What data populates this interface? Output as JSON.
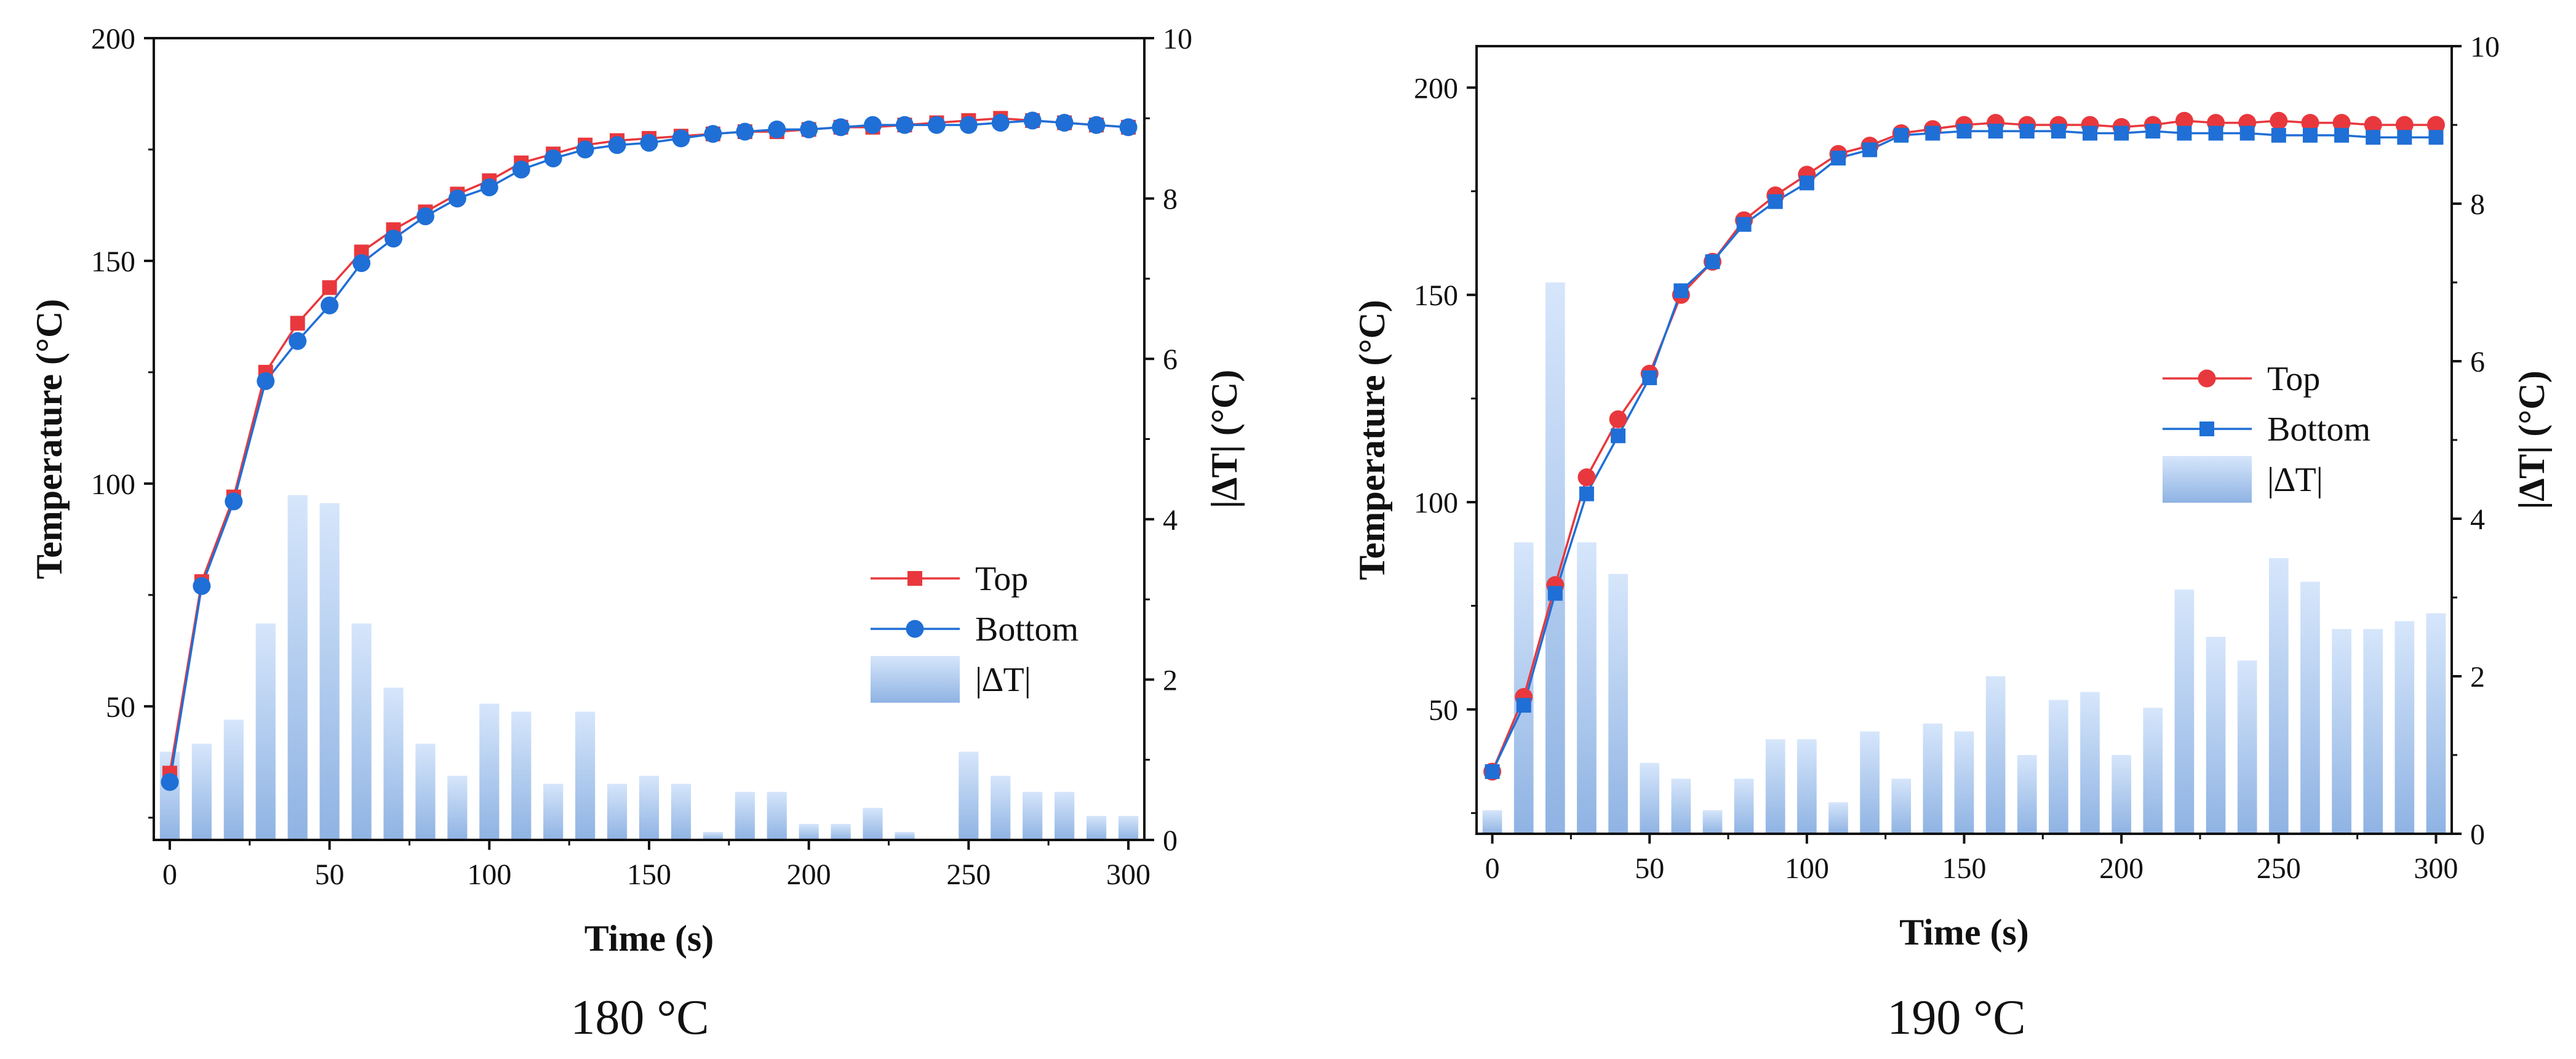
{
  "colors": {
    "top": "#e8383d",
    "bottom": "#1f6fd6",
    "bar_light": "#d6e6fb",
    "bar_dark": "#8fb3e3",
    "axis": "#111111"
  },
  "chart_data": [
    {
      "type": "line+bar",
      "caption": "180 °C",
      "xlabel": "Time (s)",
      "ylabel": "Temperature (°C)",
      "y2label": "|∆T| (°C)",
      "xlim": [
        -5,
        305
      ],
      "ylim": [
        20,
        200
      ],
      "y2lim": [
        0,
        10
      ],
      "xticks": [
        0,
        50,
        100,
        150,
        200,
        250,
        300
      ],
      "yticks": [
        50,
        100,
        150,
        200
      ],
      "y2ticks": [
        0,
        2,
        4,
        6,
        8,
        10
      ],
      "legend": {
        "placement": "center-right",
        "labels": [
          "Top",
          "Bottom",
          "|∆T|"
        ]
      },
      "x": [
        0,
        10,
        20,
        30,
        40,
        50,
        60,
        70,
        80,
        90,
        100,
        110,
        120,
        130,
        140,
        150,
        160,
        170,
        180,
        190,
        200,
        210,
        220,
        230,
        240,
        250,
        260,
        270,
        280,
        290,
        300
      ],
      "series": [
        {
          "name": "Top",
          "marker": "square",
          "values": [
            35,
            78,
            97,
            125,
            136,
            144,
            152,
            157,
            161,
            165,
            168,
            172,
            174,
            176,
            177,
            177.5,
            178,
            178.5,
            179,
            179,
            179.5,
            180,
            180,
            180.5,
            181,
            181.5,
            182,
            181.5,
            181,
            180.5,
            180
          ]
        },
        {
          "name": "Bottom",
          "marker": "circle",
          "values": [
            33,
            77,
            96,
            123,
            132,
            140,
            149.5,
            155,
            160,
            164,
            166.5,
            170.5,
            173,
            175,
            176,
            176.5,
            177.5,
            178.5,
            179,
            179.5,
            179.5,
            180,
            180.5,
            180.5,
            180.5,
            180.5,
            181,
            181.5,
            181,
            180.5,
            180
          ]
        },
        {
          "name": "|∆T|",
          "type": "bar",
          "axis": "y2",
          "values": [
            1.1,
            1.2,
            1.5,
            2.7,
            4.3,
            4.2,
            2.7,
            1.9,
            1.2,
            0.8,
            1.7,
            1.6,
            0.7,
            1.6,
            0.7,
            0.8,
            0.7,
            0.1,
            0.6,
            0.6,
            0.2,
            0.2,
            0.4,
            0.1,
            0,
            1.1,
            0.8,
            0.6,
            0.6,
            0.3,
            0.3
          ]
        }
      ]
    },
    {
      "type": "line+bar",
      "caption": "190 °C",
      "xlabel": "Time (s)",
      "ylabel": "Temperature (°C)",
      "y2label": "|∆T| (°C)",
      "xlim": [
        -5,
        305
      ],
      "ylim": [
        20,
        210
      ],
      "y2lim": [
        0,
        10
      ],
      "xticks": [
        0,
        50,
        100,
        150,
        200,
        250,
        300
      ],
      "yticks": [
        50,
        100,
        150,
        200
      ],
      "y2ticks": [
        0,
        2,
        4,
        6,
        8,
        10
      ],
      "legend": {
        "placement": "center-right",
        "labels": [
          "Top",
          "Bottom",
          "|∆T|"
        ]
      },
      "x": [
        0,
        10,
        20,
        30,
        40,
        50,
        60,
        70,
        80,
        90,
        100,
        110,
        120,
        130,
        140,
        150,
        160,
        170,
        180,
        190,
        200,
        210,
        220,
        230,
        240,
        250,
        260,
        270,
        280,
        290,
        300
      ],
      "series": [
        {
          "name": "Top",
          "marker": "circle",
          "values": [
            35,
            53,
            80,
            106,
            120,
            131,
            150,
            158,
            168,
            174,
            179,
            184,
            186,
            189,
            190,
            191,
            191.5,
            191,
            191,
            191,
            190.5,
            191,
            192,
            191.5,
            191.5,
            192,
            191.5,
            191.5,
            191,
            191,
            191
          ]
        },
        {
          "name": "Bottom",
          "marker": "square",
          "values": [
            35,
            51,
            78,
            102,
            116,
            130,
            151,
            158,
            167,
            172.5,
            177,
            183,
            185,
            188.5,
            189,
            189.5,
            189.5,
            189.5,
            189.5,
            189,
            189,
            189.5,
            189,
            189,
            189,
            188.5,
            188.5,
            188.5,
            188,
            188,
            188
          ]
        },
        {
          "name": "|∆T|",
          "type": "bar",
          "axis": "y2",
          "values": [
            0.3,
            3.7,
            7,
            3.7,
            3.3,
            0.9,
            0.7,
            0.3,
            0.7,
            1.2,
            1.2,
            0.4,
            1.3,
            0.7,
            1.4,
            1.3,
            2,
            1,
            1.7,
            1.8,
            1,
            1.6,
            3.1,
            2.5,
            2.2,
            3.5,
            3.2,
            2.6,
            2.6,
            2.7,
            2.8
          ]
        }
      ]
    }
  ]
}
